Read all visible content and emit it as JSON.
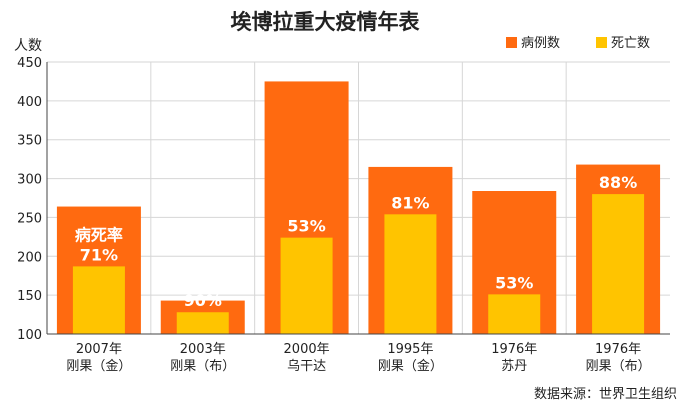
{
  "chart_data": {
    "type": "bar",
    "title": "埃博拉重大疫情年表",
    "ylabel": "人数",
    "ylim": [
      100,
      450
    ],
    "yticks": [
      100,
      150,
      200,
      250,
      300,
      350,
      400,
      450
    ],
    "grid": true,
    "legend_position": "top-right",
    "categories": [
      [
        "2007年",
        "刚果（金）"
      ],
      [
        "2003年",
        "刚果（布）"
      ],
      [
        "2000年",
        "乌干达"
      ],
      [
        "1995年",
        "刚果（金）"
      ],
      [
        "1976年",
        "苏丹"
      ],
      [
        "1976年",
        "刚果（布）"
      ]
    ],
    "series": [
      {
        "name": "病例数",
        "color": "#ff6a10",
        "values": [
          264,
          143,
          425,
          315,
          284,
          318
        ]
      },
      {
        "name": "死亡数",
        "color": "#ffc400",
        "values": [
          187,
          128,
          224,
          254,
          151,
          280
        ]
      }
    ],
    "fatality_labels": [
      "71%",
      "90%",
      "53%",
      "81%",
      "53%",
      "88%"
    ],
    "annotation": "病死率",
    "source": "数据来源：世界卫生组织"
  }
}
